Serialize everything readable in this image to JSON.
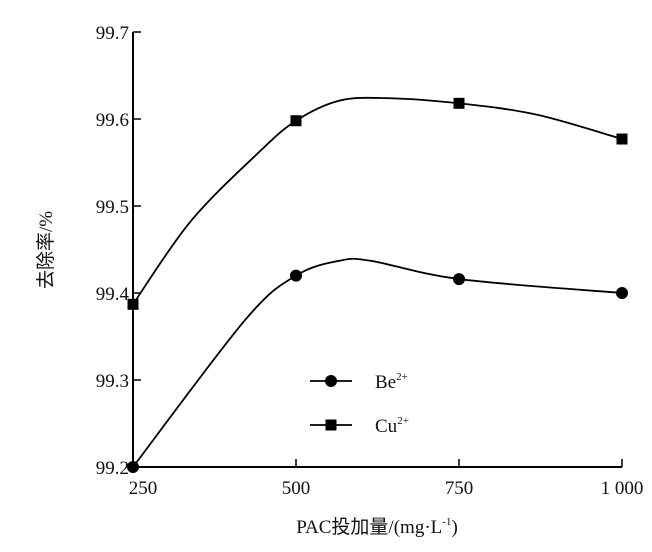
{
  "chart_data": {
    "type": "line",
    "title": "",
    "xlabel": "PAC投加量/(mg·L",
    "xlabel_sup": "-1",
    "xlabel_end": ")",
    "ylabel": "去除率/%",
    "xlim": [
      250,
      1000
    ],
    "ylim": [
      99.2,
      99.7
    ],
    "xticks": [
      250,
      500,
      750,
      1000
    ],
    "xtick_labels": [
      "250",
      "500",
      "750",
      "1 000"
    ],
    "yticks": [
      99.2,
      99.3,
      99.4,
      99.5,
      99.6,
      99.7
    ],
    "ytick_labels": [
      "99.2",
      "99.3",
      "99.4",
      "99.5",
      "99.6",
      "99.7"
    ],
    "grid": false,
    "legend_placement": "bottom-center",
    "series": [
      {
        "name": "Be",
        "name_sup": "2+",
        "marker": "circle",
        "color": "#000000",
        "x": [
          250,
          500,
          750,
          1000
        ],
        "values": [
          99.2,
          99.42,
          99.416,
          99.4
        ],
        "line_points": [
          [
            250,
            99.2
          ],
          [
            422,
            99.369
          ],
          [
            500,
            99.42
          ],
          [
            566,
            99.437
          ],
          [
            615,
            99.437
          ],
          [
            750,
            99.416
          ],
          [
            1000,
            99.4
          ]
        ]
      },
      {
        "name": "Cu",
        "name_sup": "2+",
        "marker": "square",
        "color": "#000000",
        "x": [
          250,
          500,
          750,
          1000
        ],
        "values": [
          99.387,
          99.598,
          99.618,
          99.577
        ],
        "line_points": [
          [
            250,
            99.387
          ],
          [
            338,
            99.482
          ],
          [
            442,
            99.561
          ],
          [
            500,
            99.598
          ],
          [
            566,
            99.621
          ],
          [
            638,
            99.624
          ],
          [
            750,
            99.618
          ],
          [
            869,
            99.605
          ],
          [
            1000,
            99.577
          ]
        ]
      }
    ]
  }
}
